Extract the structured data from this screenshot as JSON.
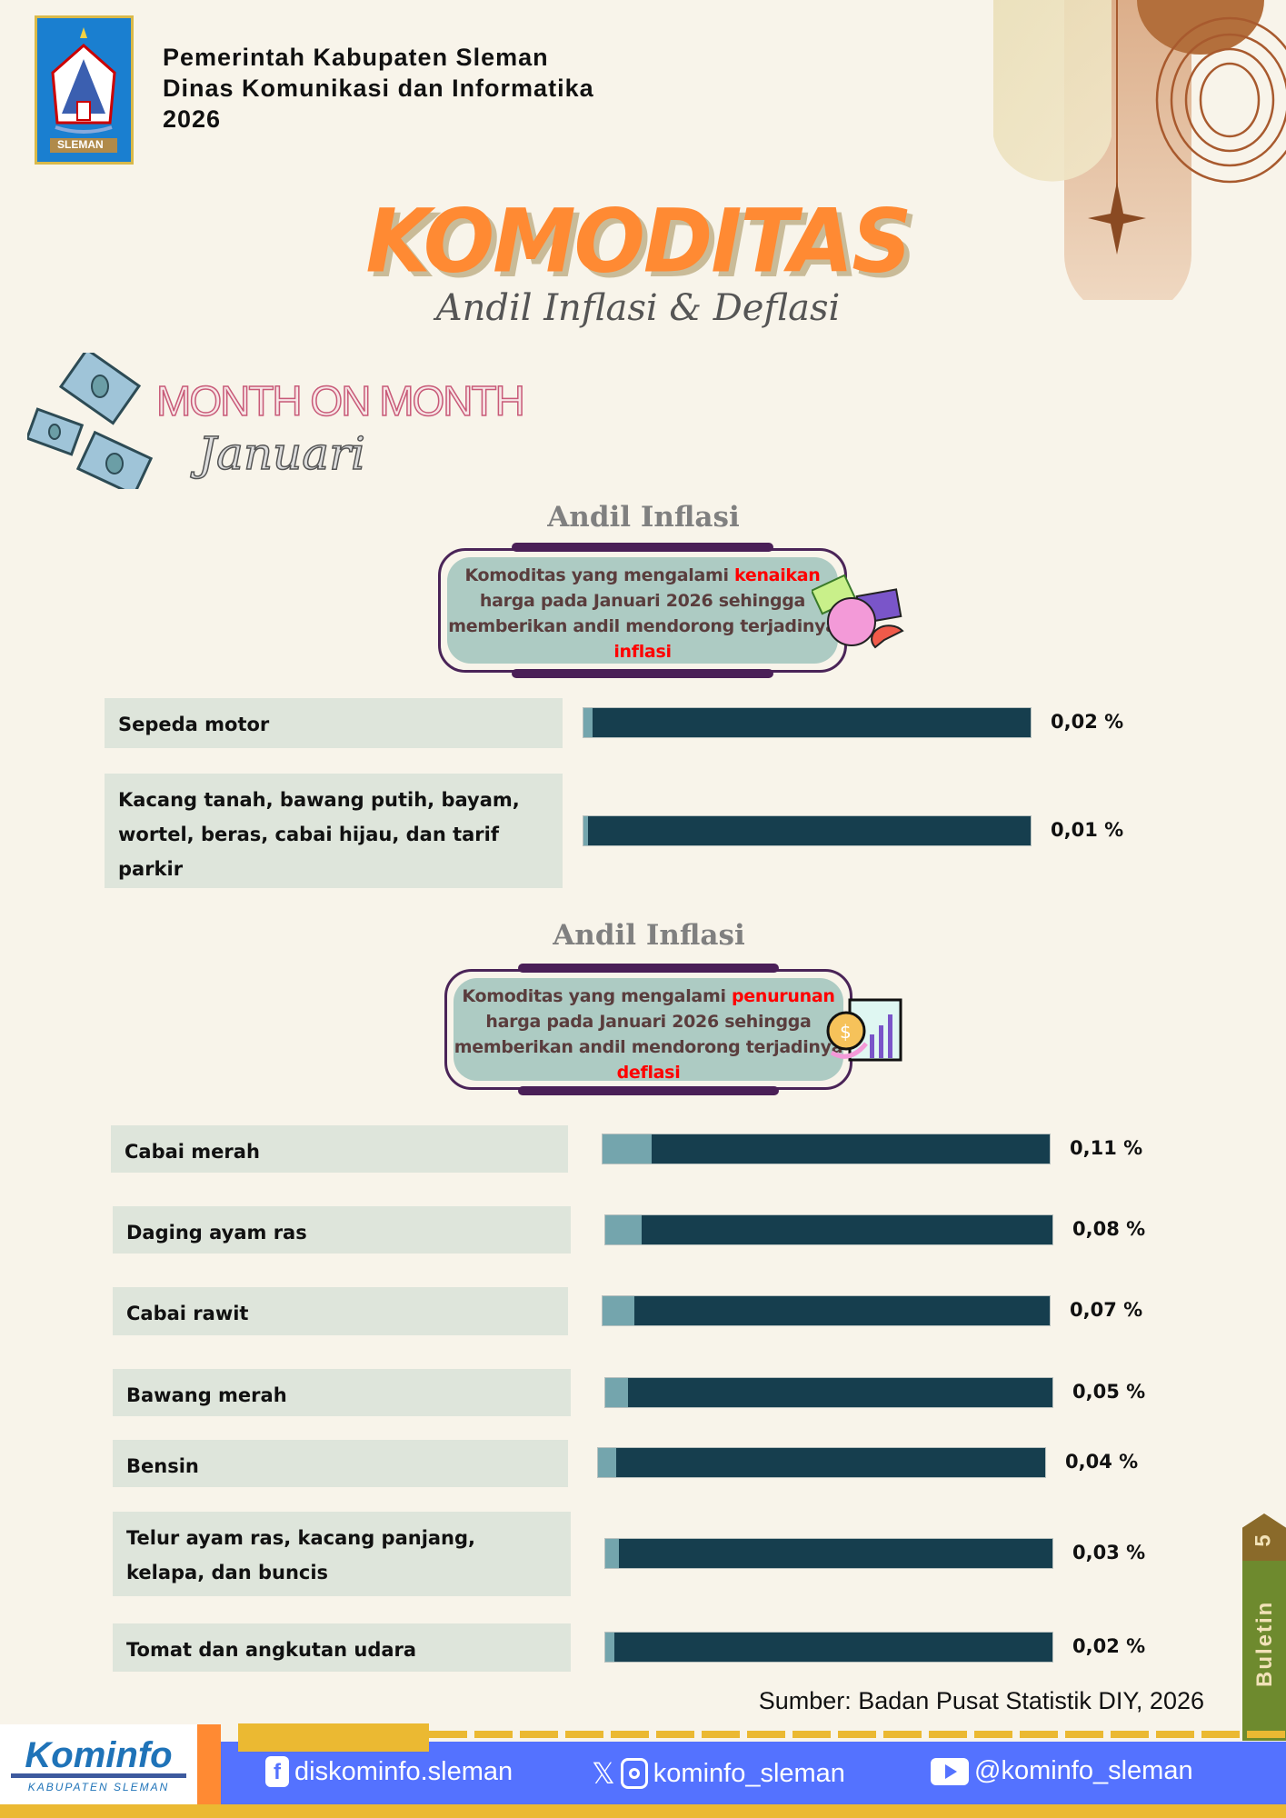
{
  "header": {
    "lines": [
      "Pemerintah Kabupaten Sleman",
      "Dinas Komunikasi dan Informatika",
      "2026"
    ],
    "logo_text": "SLEMAN"
  },
  "title": "KOMODITAS",
  "subtitle": "Andil Inflasi & Deflasi",
  "period": {
    "label": "MONTH ON MONTH",
    "month": "Januari"
  },
  "inflasi": {
    "heading": "Andil Inflasi",
    "desc": {
      "pre": "Komoditas yang mengalami ",
      "highlight": "kenaikan",
      "mid": " harga pada Januari 2026 sehingga memberikan andil mendorong terjadinya ",
      "highlight2": "inflasi"
    },
    "items": [
      {
        "label": "Sepeda motor",
        "value": 0.02,
        "display": "0,02 %"
      },
      {
        "label": "Kacang tanah, bawang putih, bayam, wortel, beras, cabai hijau, dan tarif parkir",
        "value": 0.01,
        "display": "0,01 %"
      }
    ]
  },
  "deflasi": {
    "heading": "Andil Inflasi",
    "desc": {
      "pre": "Komoditas yang mengalami ",
      "highlight": "penurunan",
      "mid": " harga pada Januari 2026 sehingga memberikan andil mendorong terjadinya ",
      "highlight2": "deflasi"
    },
    "items": [
      {
        "label": "Cabai merah",
        "value": 0.11,
        "display": "0,11 %"
      },
      {
        "label": "Daging ayam ras",
        "value": 0.08,
        "display": "0,08 %"
      },
      {
        "label": "Cabai rawit",
        "value": 0.07,
        "display": "0,07 %"
      },
      {
        "label": "Bawang merah",
        "value": 0.05,
        "display": "0,05 %"
      },
      {
        "label": "Bensin",
        "value": 0.04,
        "display": "0,04 %"
      },
      {
        "label": "Telur ayam ras, kacang panjang, kelapa, dan buncis",
        "value": 0.03,
        "display": "0,03 %"
      },
      {
        "label": "Tomat dan angkutan udara",
        "value": 0.02,
        "display": "0,02 %"
      }
    ]
  },
  "source": "Sumber: Badan Pusat Statistik DIY, 2026",
  "tab": {
    "number": "5",
    "label": "Buletin"
  },
  "footer": {
    "logo": "Kominfo",
    "logo_sub": "KABUPATEN SLEMAN",
    "facebook": "diskominfo.sleman",
    "x_instagram": "kominfo_sleman",
    "youtube": "@kominfo_sleman"
  },
  "colors": {
    "bar_dark": "#163e4e",
    "bar_light": "#74a5ad",
    "title": "#ff8a33",
    "accent_red": "#ff0000",
    "footer_blue": "#5472ff",
    "footer_yellow": "#ebb932"
  }
}
